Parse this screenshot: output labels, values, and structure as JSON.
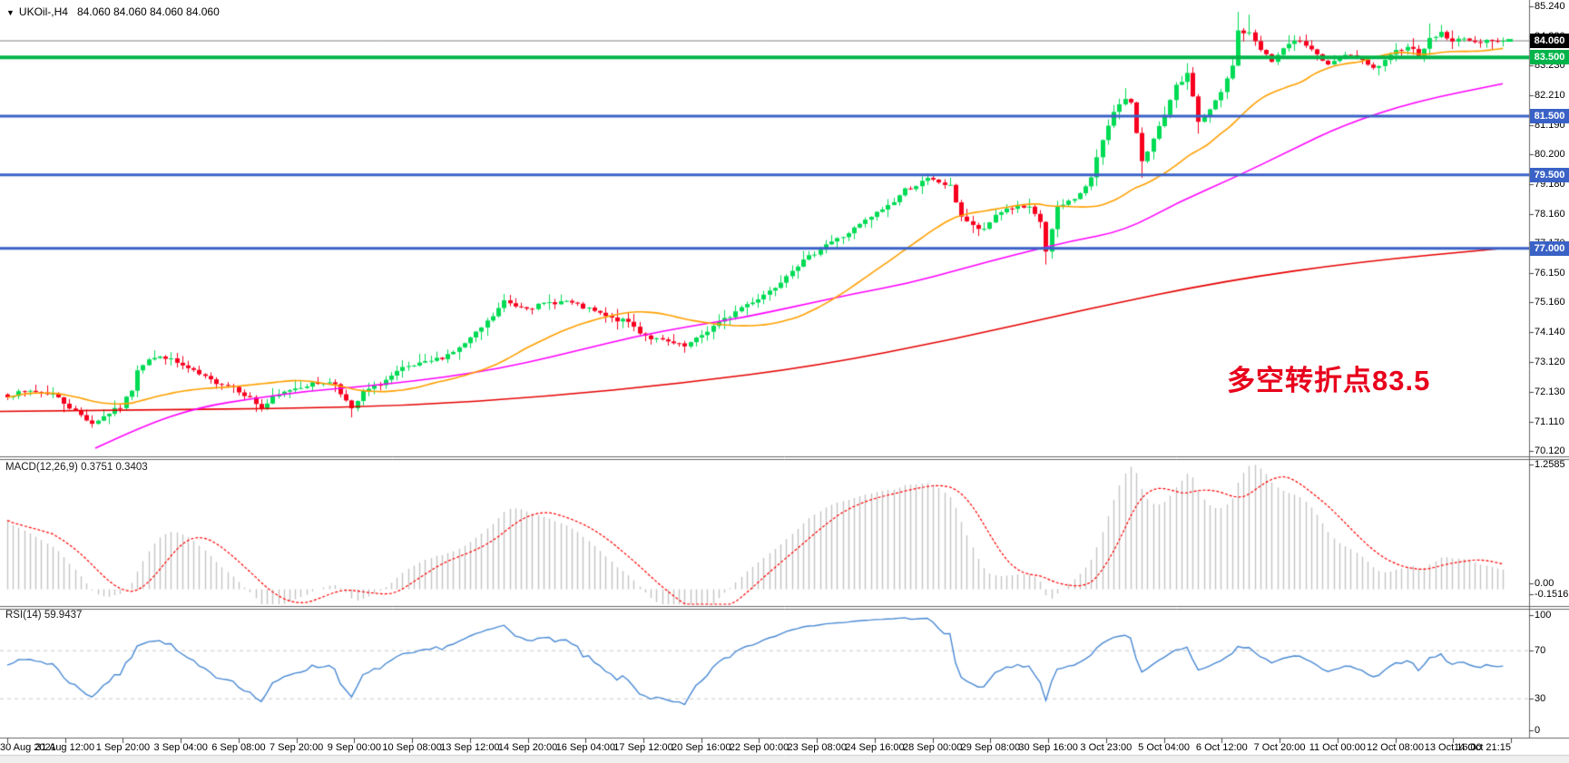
{
  "header": {
    "dropdown_icon": "▼",
    "symbol": "UKOil-,H4",
    "ohlc": "84.060 84.060 84.060 84.060"
  },
  "annotation": {
    "text": "多空转折点83.5",
    "color": "#E8001C"
  },
  "price_axis": {
    "ticks": [
      {
        "label": "85.240",
        "value": 85.24
      },
      {
        "label": "84.220",
        "value": 84.22
      },
      {
        "label": "83.230",
        "value": 83.23
      },
      {
        "label": "82.210",
        "value": 82.21
      },
      {
        "label": "81.190",
        "value": 81.19
      },
      {
        "label": "80.200",
        "value": 80.2
      },
      {
        "label": "79.180",
        "value": 79.18
      },
      {
        "label": "78.160",
        "value": 78.16
      },
      {
        "label": "77.170",
        "value": 77.17
      },
      {
        "label": "76.150",
        "value": 76.15
      },
      {
        "label": "75.160",
        "value": 75.16
      },
      {
        "label": "74.140",
        "value": 74.14
      },
      {
        "label": "73.120",
        "value": 73.12
      },
      {
        "label": "72.130",
        "value": 72.13
      },
      {
        "label": "71.110",
        "value": 71.11
      },
      {
        "label": "70.120",
        "value": 70.12
      }
    ],
    "tags": [
      {
        "label": "84.060",
        "value": 84.06,
        "bg": "#000000",
        "role": "current-price"
      },
      {
        "label": "83.500",
        "value": 83.5,
        "bg": "#00B44A",
        "role": "line-level"
      },
      {
        "label": "81.500",
        "value": 81.5,
        "bg": "#3A62C6",
        "role": "line-level"
      },
      {
        "label": "79.500",
        "value": 79.5,
        "bg": "#3A62C6",
        "role": "line-level"
      },
      {
        "label": "77.000",
        "value": 77.0,
        "bg": "#3A62C6",
        "role": "line-level"
      }
    ]
  },
  "time_axis": {
    "labels": [
      "30 Aug 2021",
      "31 Aug 12:00",
      "1 Sep 20:00",
      "3 Sep 04:00",
      "6 Sep 08:00",
      "7 Sep 20:00",
      "9 Sep 00:00",
      "10 Sep 08:00",
      "13 Sep 12:00",
      "14 Sep 20:00",
      "16 Sep 04:00",
      "17 Sep 12:00",
      "20 Sep 16:00",
      "22 Sep 00:00",
      "23 Sep 08:00",
      "24 Sep 16:00",
      "28 Sep 00:00",
      "29 Sep 08:00",
      "30 Sep 16:00",
      "3 Oct 23:00",
      "5 Oct 04:00",
      "6 Oct 12:00",
      "7 Oct 20:00",
      "11 Oct 00:00",
      "12 Oct 08:00",
      "13 Oct 16:00",
      "14 Oct 21:15"
    ]
  },
  "panels": {
    "macd": {
      "label": "MACD(12,26,9) 0.3751 0.3403",
      "axis_labels": [
        "1.2585",
        "0.00",
        "-0.1516"
      ]
    },
    "rsi": {
      "label": "RSI(14) 59.9437",
      "axis_labels": [
        "100",
        "70",
        "30",
        "0"
      ]
    }
  },
  "chart_data": {
    "type": "candlestick",
    "symbol": "UKOil-",
    "timeframe": "H4",
    "last_price": 84.06,
    "ohlc_current": [
      84.06,
      84.06,
      84.06,
      84.06
    ],
    "y_axis": {
      "min": 69.93,
      "max": 85.46
    },
    "x_range": [
      "30 Aug 2021",
      "14 Oct 21:15"
    ],
    "horizontal_lines": [
      {
        "price": 84.06,
        "color": "#808080",
        "width": 1,
        "style": "current-price-line"
      },
      {
        "price": 83.5,
        "color": "#00B44A",
        "width": 4,
        "style": "resistance-turn-level"
      },
      {
        "price": 81.5,
        "color": "#3A62C6",
        "width": 3,
        "style": "support"
      },
      {
        "price": 79.5,
        "color": "#3A62C6",
        "width": 3,
        "style": "support"
      },
      {
        "price": 77.0,
        "color": "#3A62C6",
        "width": 3,
        "style": "support"
      }
    ],
    "candles": {
      "count": 266,
      "up_color": "#00DB54",
      "down_color": "#F7001E",
      "noise": 0.07,
      "seed": 7,
      "close_anchors": [
        [
          0,
          72.0
        ],
        [
          4,
          72.15
        ],
        [
          8,
          72.05
        ],
        [
          11,
          71.6
        ],
        [
          15,
          71.05
        ],
        [
          18,
          71.4
        ],
        [
          20,
          71.6
        ],
        [
          22,
          72.2
        ],
        [
          23,
          72.9
        ],
        [
          25,
          73.25
        ],
        [
          28,
          73.3
        ],
        [
          30,
          73.1
        ],
        [
          33,
          72.8
        ],
        [
          36,
          72.5
        ],
        [
          40,
          72.3
        ],
        [
          43,
          71.9
        ],
        [
          45,
          71.55
        ],
        [
          47,
          71.9
        ],
        [
          50,
          72.2
        ],
        [
          53,
          72.35
        ],
        [
          56,
          72.45
        ],
        [
          58,
          72.4
        ],
        [
          60,
          71.8
        ],
        [
          61,
          71.5
        ],
        [
          63,
          72.1
        ],
        [
          66,
          72.4
        ],
        [
          70,
          72.9
        ],
        [
          74,
          73.1
        ],
        [
          77,
          73.3
        ],
        [
          80,
          73.6
        ],
        [
          83,
          74.1
        ],
        [
          86,
          74.7
        ],
        [
          88,
          75.2
        ],
        [
          90,
          75.05
        ],
        [
          93,
          75.0
        ],
        [
          96,
          75.15
        ],
        [
          99,
          75.2
        ],
        [
          101,
          75.05
        ],
        [
          104,
          74.85
        ],
        [
          107,
          74.6
        ],
        [
          110,
          74.5
        ],
        [
          112,
          74.15
        ],
        [
          114,
          73.95
        ],
        [
          117,
          73.8
        ],
        [
          120,
          73.65
        ],
        [
          122,
          73.9
        ],
        [
          125,
          74.35
        ],
        [
          128,
          74.7
        ],
        [
          130,
          75.0
        ],
        [
          133,
          75.3
        ],
        [
          136,
          75.7
        ],
        [
          139,
          76.3
        ],
        [
          142,
          76.7
        ],
        [
          145,
          77.15
        ],
        [
          148,
          77.4
        ],
        [
          151,
          77.8
        ],
        [
          154,
          78.2
        ],
        [
          157,
          78.6
        ],
        [
          159,
          79.0
        ],
        [
          161,
          79.15
        ],
        [
          163,
          79.35
        ],
        [
          165,
          79.25
        ],
        [
          167,
          79.1
        ],
        [
          169,
          78.1
        ],
        [
          171,
          77.75
        ],
        [
          173,
          77.6
        ],
        [
          175,
          78.15
        ],
        [
          177,
          78.35
        ],
        [
          179,
          78.4
        ],
        [
          181,
          78.35
        ],
        [
          183,
          77.9
        ],
        [
          184,
          76.9
        ],
        [
          186,
          78.35
        ],
        [
          188,
          78.6
        ],
        [
          190,
          78.85
        ],
        [
          192,
          79.4
        ],
        [
          194,
          80.7
        ],
        [
          196,
          81.7
        ],
        [
          198,
          82.05
        ],
        [
          199,
          81.9
        ],
        [
          201,
          80.0
        ],
        [
          203,
          80.7
        ],
        [
          205,
          81.5
        ],
        [
          207,
          82.5
        ],
        [
          209,
          82.9
        ],
        [
          210,
          82.2
        ],
        [
          211,
          81.3
        ],
        [
          213,
          81.7
        ],
        [
          215,
          82.3
        ],
        [
          217,
          83.2
        ],
        [
          218,
          84.4
        ],
        [
          220,
          84.3
        ],
        [
          222,
          83.8
        ],
        [
          224,
          83.35
        ],
        [
          226,
          83.8
        ],
        [
          228,
          84.0
        ],
        [
          229,
          84.1
        ],
        [
          231,
          83.8
        ],
        [
          232,
          83.6
        ],
        [
          234,
          83.2
        ],
        [
          236,
          83.45
        ],
        [
          238,
          83.6
        ],
        [
          240,
          83.35
        ],
        [
          242,
          83.1
        ],
        [
          244,
          83.35
        ],
        [
          246,
          83.7
        ],
        [
          248,
          83.9
        ],
        [
          250,
          83.6
        ],
        [
          252,
          84.1
        ],
        [
          254,
          84.35
        ],
        [
          256,
          84.0
        ],
        [
          258,
          84.2
        ],
        [
          260,
          83.95
        ],
        [
          262,
          84.15
        ],
        [
          264,
          84.0
        ],
        [
          265,
          84.06
        ]
      ],
      "wick_events": [
        {
          "i": 15,
          "low": 70.9
        },
        {
          "i": 61,
          "low": 71.25
        },
        {
          "i": 88,
          "high": 75.45
        },
        {
          "i": 120,
          "low": 73.45
        },
        {
          "i": 163,
          "high": 79.55
        },
        {
          "i": 184,
          "low": 76.45
        },
        {
          "i": 198,
          "high": 82.45
        },
        {
          "i": 201,
          "low": 79.4
        },
        {
          "i": 209,
          "high": 83.3
        },
        {
          "i": 211,
          "low": 80.9
        },
        {
          "i": 218,
          "high": 85.05
        },
        {
          "i": 220,
          "high": 84.95
        },
        {
          "i": 252,
          "high": 84.65
        },
        {
          "i": 254,
          "high": 84.6
        }
      ]
    },
    "moving_averages": [
      {
        "name": "ma-fast",
        "color": "#FFA000",
        "method": "sma",
        "period": 30
      },
      {
        "name": "ma-medium",
        "color": "#FF00FF",
        "anchors": [
          [
            105,
            70.2
          ],
          [
            160,
            71.0
          ],
          [
            220,
            71.6
          ],
          [
            280,
            71.9
          ],
          [
            340,
            72.15
          ],
          [
            400,
            72.3
          ],
          [
            460,
            72.5
          ],
          [
            520,
            72.75
          ],
          [
            580,
            73.1
          ],
          [
            640,
            73.55
          ],
          [
            700,
            74.0
          ],
          [
            760,
            74.35
          ],
          [
            820,
            74.65
          ],
          [
            880,
            75.05
          ],
          [
            940,
            75.45
          ],
          [
            1000,
            75.8
          ],
          [
            1060,
            76.3
          ],
          [
            1120,
            76.8
          ],
          [
            1180,
            77.25
          ],
          [
            1240,
            77.6
          ],
          [
            1300,
            78.6
          ],
          [
            1360,
            79.4
          ],
          [
            1420,
            80.3
          ],
          [
            1480,
            81.2
          ],
          [
            1560,
            82.0
          ],
          [
            1656,
            82.6
          ]
        ]
      },
      {
        "name": "ma-slow",
        "color": "#E60000",
        "anchors": [
          [
            0,
            71.45
          ],
          [
            150,
            71.5
          ],
          [
            300,
            71.55
          ],
          [
            450,
            71.65
          ],
          [
            600,
            71.95
          ],
          [
            750,
            72.4
          ],
          [
            900,
            73.0
          ],
          [
            1050,
            73.9
          ],
          [
            1200,
            74.95
          ],
          [
            1350,
            75.9
          ],
          [
            1500,
            76.55
          ],
          [
            1656,
            77.0
          ]
        ]
      }
    ],
    "macd": {
      "fast": 12,
      "slow": 26,
      "signal_period": 9,
      "value": 0.3751,
      "signal_value": 0.3403,
      "axis_max": 1.2585,
      "axis_min": -0.1516,
      "histogram_color": "#C4C4C4",
      "signal_color": "#FF0000",
      "signal_style": "dashed"
    },
    "rsi": {
      "period": 14,
      "value": 59.9437,
      "color": "#4A8AD4",
      "levels": [
        70,
        30
      ],
      "level_line_color": "#C8C8C8"
    }
  }
}
